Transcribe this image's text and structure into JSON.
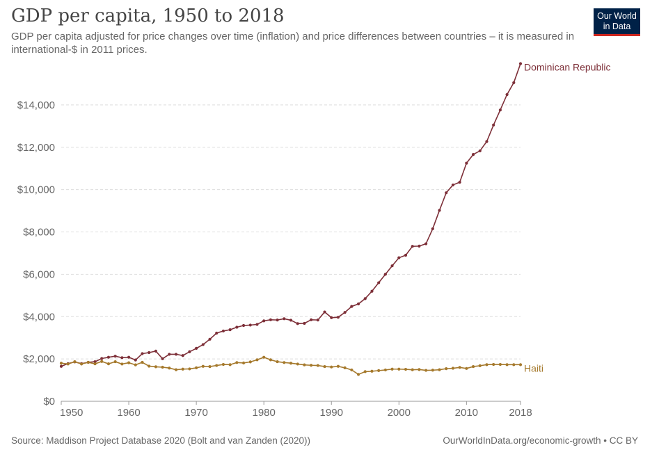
{
  "header": {
    "title": "GDP per capita, 1950 to 2018",
    "subtitle": "GDP per capita adjusted for price changes over time (inflation) and price differences between countries – it is measured in international-$ in 2011 prices."
  },
  "logo": {
    "line1": "Our World",
    "line2": "in Data"
  },
  "footer": {
    "source": "Source: Maddison Project Database 2020 (Bolt and van Zanden (2020))",
    "url": "OurWorldInData.org/economic-growth • CC BY"
  },
  "colors": {
    "dominican_republic": "#7d2f38",
    "haiti": "#a5792c",
    "grid": "#dddddd",
    "brand": "#002147"
  },
  "chart_data": {
    "type": "line",
    "xlim": [
      1950,
      2018
    ],
    "ylim": [
      0,
      16000
    ],
    "x_ticks": [
      {
        "value": 1950,
        "label": "1950"
      },
      {
        "value": 1960,
        "label": "1960"
      },
      {
        "value": 1970,
        "label": "1970"
      },
      {
        "value": 1980,
        "label": "1980"
      },
      {
        "value": 1990,
        "label": "1990"
      },
      {
        "value": 2000,
        "label": "2000"
      },
      {
        "value": 2010,
        "label": "2010"
      },
      {
        "value": 2018,
        "label": "2018"
      }
    ],
    "y_ticks": [
      {
        "value": 0,
        "label": "$0"
      },
      {
        "value": 2000,
        "label": "$2,000"
      },
      {
        "value": 4000,
        "label": "$4,000"
      },
      {
        "value": 6000,
        "label": "$6,000"
      },
      {
        "value": 8000,
        "label": "$8,000"
      },
      {
        "value": 10000,
        "label": "$10,000"
      },
      {
        "value": 12000,
        "label": "$12,000"
      },
      {
        "value": 14000,
        "label": "$14,000"
      }
    ],
    "grid": true,
    "x": [
      1950,
      1951,
      1952,
      1953,
      1954,
      1955,
      1956,
      1957,
      1958,
      1959,
      1960,
      1961,
      1962,
      1963,
      1964,
      1965,
      1966,
      1967,
      1968,
      1969,
      1970,
      1971,
      1972,
      1973,
      1974,
      1975,
      1976,
      1977,
      1978,
      1979,
      1980,
      1981,
      1982,
      1983,
      1984,
      1985,
      1986,
      1987,
      1988,
      1989,
      1990,
      1991,
      1992,
      1993,
      1994,
      1995,
      1996,
      1997,
      1998,
      1999,
      2000,
      2001,
      2002,
      2003,
      2004,
      2005,
      2006,
      2007,
      2008,
      2009,
      2010,
      2011,
      2012,
      2013,
      2014,
      2015,
      2016,
      2017,
      2018
    ],
    "series": [
      {
        "name": "Dominican Republic",
        "values": [
          1650,
          1780,
          1860,
          1780,
          1840,
          1870,
          2020,
          2080,
          2130,
          2060,
          2080,
          1950,
          2250,
          2300,
          2370,
          2010,
          2220,
          2220,
          2160,
          2340,
          2500,
          2680,
          2930,
          3220,
          3320,
          3380,
          3500,
          3580,
          3600,
          3630,
          3800,
          3850,
          3840,
          3900,
          3830,
          3670,
          3680,
          3850,
          3840,
          4220,
          3950,
          3970,
          4200,
          4480,
          4600,
          4850,
          5200,
          5600,
          6000,
          6400,
          6780,
          6900,
          7320,
          7330,
          7440,
          8150,
          9020,
          9850,
          10220,
          10350,
          11250,
          11660,
          11830,
          12270,
          13050,
          13760,
          14490,
          15050,
          15950
        ],
        "label_pos": "end"
      },
      {
        "name": "Haiti",
        "values": [
          1800,
          1760,
          1870,
          1760,
          1840,
          1770,
          1880,
          1770,
          1870,
          1760,
          1820,
          1720,
          1840,
          1660,
          1630,
          1610,
          1570,
          1490,
          1520,
          1530,
          1580,
          1650,
          1640,
          1690,
          1740,
          1730,
          1830,
          1810,
          1860,
          1960,
          2080,
          1960,
          1870,
          1830,
          1800,
          1760,
          1720,
          1700,
          1690,
          1640,
          1620,
          1650,
          1580,
          1480,
          1270,
          1400,
          1420,
          1450,
          1480,
          1520,
          1520,
          1510,
          1490,
          1500,
          1460,
          1470,
          1490,
          1540,
          1560,
          1600,
          1550,
          1640,
          1680,
          1730,
          1740,
          1740,
          1730,
          1730,
          1730
        ]
      }
    ]
  }
}
